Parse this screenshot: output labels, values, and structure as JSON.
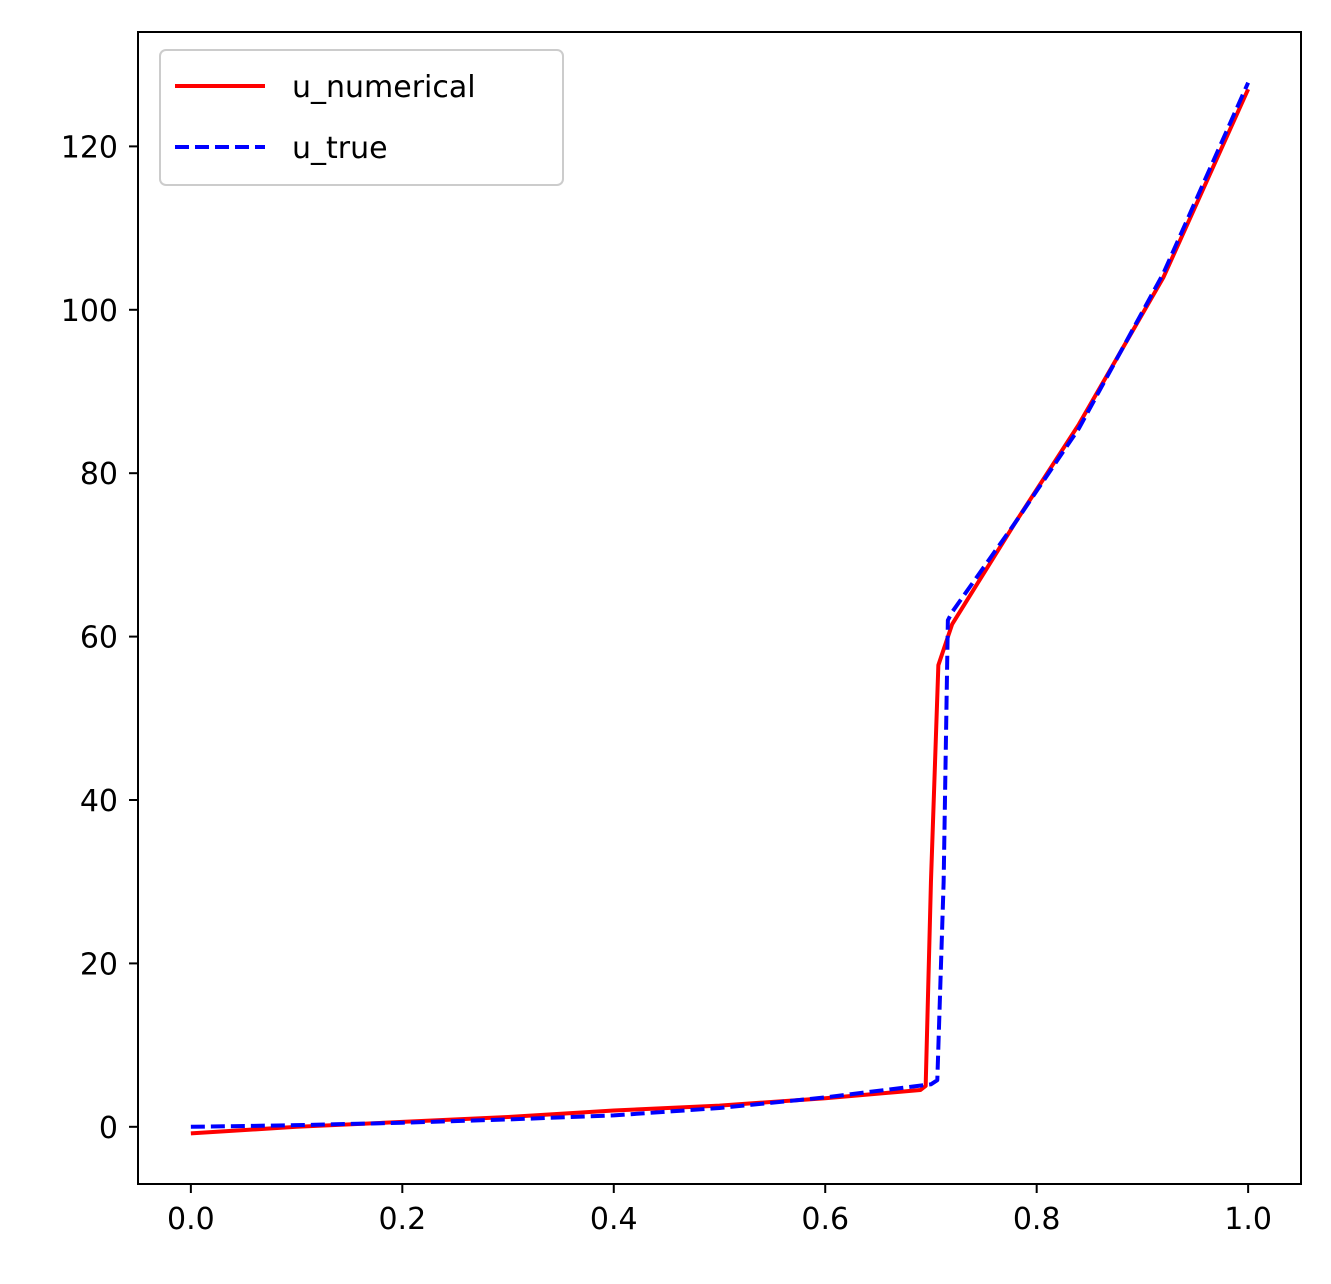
{
  "chart_data": {
    "type": "line",
    "title": "",
    "xlabel": "",
    "ylabel": "",
    "xlim": [
      -0.05,
      1.05
    ],
    "ylim": [
      -7,
      134
    ],
    "x_ticks": [
      0.0,
      0.2,
      0.4,
      0.6,
      0.8,
      1.0
    ],
    "x_tick_labels": [
      "0.0",
      "0.2",
      "0.4",
      "0.6",
      "0.8",
      "1.0"
    ],
    "y_ticks": [
      0,
      20,
      40,
      60,
      80,
      100,
      120
    ],
    "y_tick_labels": [
      "0",
      "20",
      "40",
      "60",
      "80",
      "100",
      "120"
    ],
    "grid": false,
    "legend_position": "top-left",
    "series": [
      {
        "name": "u_numerical",
        "color": "#ff0000",
        "style": "solid",
        "x": [
          0.0,
          0.1,
          0.2,
          0.3,
          0.4,
          0.5,
          0.6,
          0.69,
          0.695,
          0.7,
          0.707,
          0.72,
          0.78,
          0.84,
          0.92,
          1.0
        ],
        "y": [
          -0.8,
          0.0,
          0.6,
          1.2,
          2.0,
          2.6,
          3.5,
          4.5,
          5.0,
          30.0,
          56.5,
          61.5,
          74.0,
          86.0,
          104.0,
          127.0
        ]
      },
      {
        "name": "u_true",
        "color": "#0000ff",
        "style": "dashed",
        "x": [
          0.0,
          0.1,
          0.2,
          0.3,
          0.4,
          0.5,
          0.6,
          0.7,
          0.706,
          0.712,
          0.716,
          0.72,
          0.78,
          0.84,
          0.92,
          1.0
        ],
        "y": [
          0.0,
          0.2,
          0.5,
          0.9,
          1.4,
          2.3,
          3.6,
          5.2,
          5.7,
          30.0,
          62.0,
          63.0,
          74.0,
          85.5,
          104.5,
          127.8
        ]
      }
    ]
  }
}
